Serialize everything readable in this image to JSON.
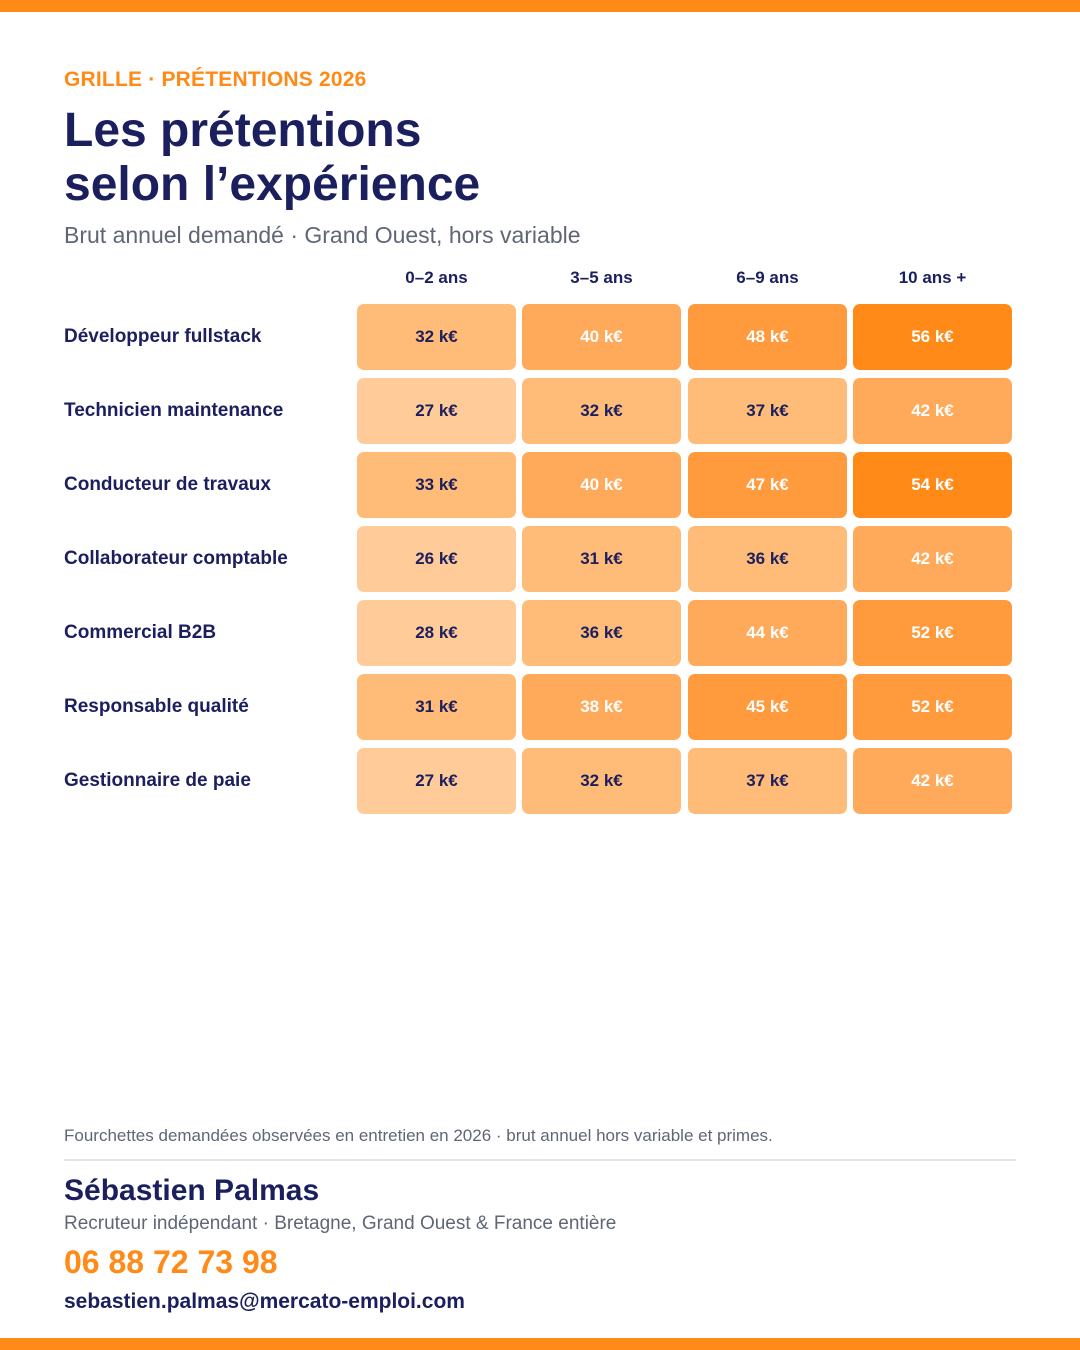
{
  "header": {
    "eyebrow": "GRILLE · PRÉTENTIONS 2026",
    "title_line1": "Les prétentions",
    "title_line2": "selon l’expérience",
    "subtitle": "Brut annuel demandé · Grand Ouest, hors variable"
  },
  "colors": {
    "accent": "#ff8a17",
    "navy": "#1b1f5e",
    "scale": [
      "#ffcb98",
      "#ffbc78",
      "#ffaa5a",
      "#ff9a3d",
      "#ff8a17"
    ]
  },
  "chart_data": {
    "type": "heatmap",
    "unit": "k€",
    "columns": [
      "0–2 ans",
      "3–5 ans",
      "6–9 ans",
      "10 ans +"
    ],
    "rows": [
      {
        "label": "Développeur fullstack",
        "values": [
          32,
          40,
          48,
          56
        ]
      },
      {
        "label": "Technicien maintenance",
        "values": [
          27,
          32,
          37,
          42
        ]
      },
      {
        "label": "Conducteur de travaux",
        "values": [
          33,
          40,
          47,
          54
        ]
      },
      {
        "label": "Collaborateur comptable",
        "values": [
          26,
          31,
          36,
          42
        ]
      },
      {
        "label": "Commercial B2B",
        "values": [
          28,
          36,
          44,
          52
        ]
      },
      {
        "label": "Responsable qualité",
        "values": [
          31,
          38,
          45,
          52
        ]
      },
      {
        "label": "Gestionnaire de paie",
        "values": [
          27,
          32,
          37,
          42
        ]
      }
    ]
  },
  "footer": {
    "note": "Fourchettes demandées observées en entretien en 2026 · brut annuel hors variable et primes.",
    "name": "Sébastien Palmas",
    "role": "Recruteur indépendant · Bretagne, Grand Ouest & France entière",
    "phone": "06 88 72 73 98",
    "email": "sebastien.palmas@mercato-emploi.com"
  }
}
